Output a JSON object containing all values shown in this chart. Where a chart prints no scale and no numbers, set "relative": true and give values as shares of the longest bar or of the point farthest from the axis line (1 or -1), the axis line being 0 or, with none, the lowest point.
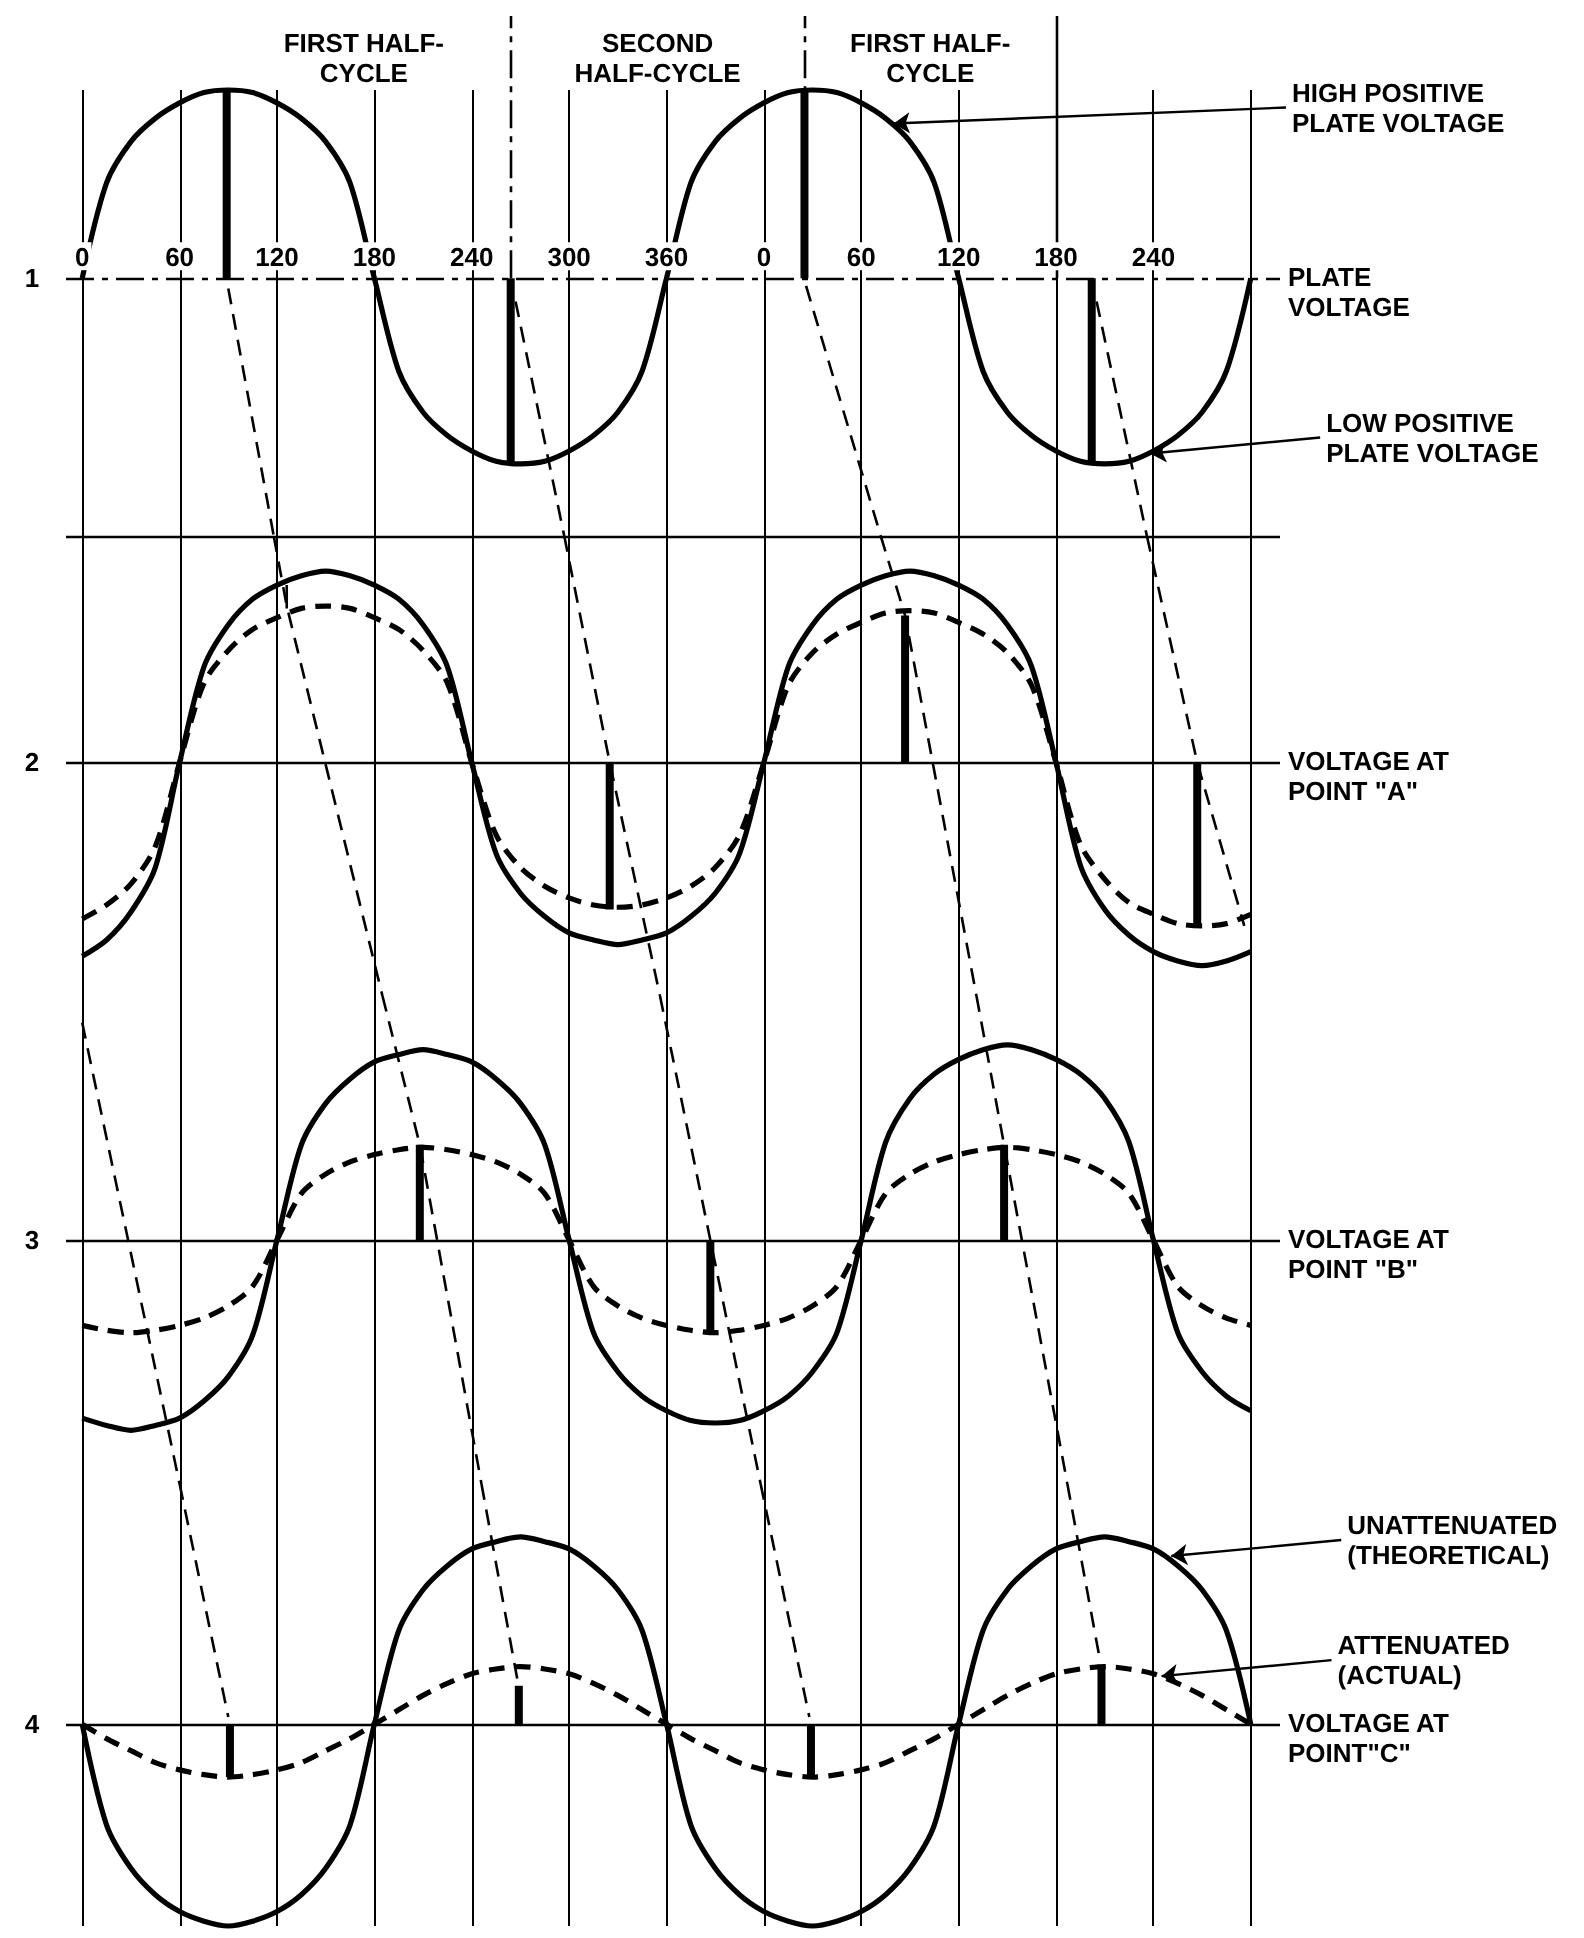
{
  "chart_data": [
    {
      "type": "line",
      "title": "1",
      "ylabel": "PLATE VOLTAGE",
      "relative": true,
      "xlim": [
        -10,
        738
      ],
      "xticks": [
        0,
        60,
        120,
        180,
        240,
        300,
        360,
        {
          "value": 420,
          "label": null
        },
        {
          "value": 480,
          "label": null
        },
        {
          "value": 540,
          "label": null
        },
        {
          "value": 600,
          "label": null
        },
        {
          "value": 660,
          "label": null
        },
        {
          "value": 720,
          "label": null
        }
      ],
      "x2lim": [
        -430,
        318
      ],
      "x2ticks": [
        0,
        60,
        120,
        180,
        240
      ],
      "tick_labels": "x",
      "grid": "x",
      "x": [
        0,
        15,
        30,
        45,
        60,
        75,
        90,
        105,
        120,
        135,
        150,
        165,
        180,
        195,
        210,
        225,
        240,
        255,
        270,
        285,
        300,
        315,
        330,
        345,
        360,
        375,
        390,
        405,
        420,
        435,
        450,
        465,
        480,
        495,
        510,
        525,
        540,
        555,
        570,
        585,
        600,
        615,
        630,
        645,
        660,
        675,
        690,
        705,
        720
      ],
      "series": [
        {
          "color": "#000000",
          "values": [
            0,
            0.37,
            0.53,
            0.62,
            0.68,
            0.72,
            0.73,
            0.72,
            0.68,
            0.62,
            0.53,
            0.37,
            0,
            -0.36,
            -0.52,
            -0.61,
            -0.67,
            -0.71,
            -0.72,
            -0.71,
            -0.67,
            -0.61,
            -0.52,
            -0.36,
            0,
            0.37,
            0.53,
            0.62,
            0.68,
            0.72,
            0.73,
            0.72,
            0.68,
            0.62,
            0.53,
            0.37,
            0,
            -0.36,
            -0.52,
            -0.61,
            -0.67,
            -0.71,
            -0.72,
            -0.71,
            -0.67,
            -0.61,
            -0.52,
            -0.36,
            0
          ]
        },
        {
          "color": "#000000",
          "line_style": "dashed",
          "x": [
            90,
            118
          ],
          "values": [
            -0.04,
            -1
          ]
        },
        {
          "color": "#000000",
          "line_style": "dashed",
          "x": [
            267,
            297
          ],
          "values": [
            -0.09,
            -1
          ]
        },
        {
          "color": "#000000",
          "line_style": "dashed",
          "x": [
            446,
            492
          ],
          "values": [
            -0.03,
            -1
          ]
        },
        {
          "color": "#000000",
          "line_style": "dashed",
          "x": [
            625,
            656
          ],
          "values": [
            -0.09,
            -1
          ]
        },
        {
          "type": "bar",
          "color": "#000000",
          "x": [
            89,
            264,
            445,
            622
          ],
          "values": [
            0.73,
            -0.72,
            0.73,
            -0.72
          ]
        }
      ],
      "ref_lines": [
        {
          "axis": "y",
          "value": 0,
          "line_style": "dashdot"
        },
        {
          "axis": "y",
          "value": -1
        },
        {
          "axis": "x",
          "value": 264,
          "line_style": "dashdot"
        },
        {
          "axis": "x",
          "value": 445,
          "line_style": "dashdot"
        },
        {
          "axis": "x",
          "value": 600
        }
      ],
      "annotations": [
        "FIRST HALF-CYCLE",
        "SECOND HALF-CYCLE",
        "FIRST HALF-CYCLE",
        {
          "text": "HIGH POSITIVE PLATE VOLTAGE",
          "x": 500,
          "y": 0.6
        },
        {
          "text": "LOW POSITIVE PLATE VOLTAGE",
          "x": 658,
          "y": -0.68
        }
      ]
    },
    {
      "type": "line",
      "title": "2",
      "ylabel": "VOLTAGE AT POINT \"A\"",
      "relative": true,
      "xlim": [
        -10,
        738
      ],
      "xticks": [
        0,
        60,
        120,
        180,
        240,
        300,
        360,
        420,
        480,
        540,
        600,
        660,
        720
      ],
      "tick_labels": false,
      "grid": "x",
      "x": [
        0,
        15,
        30,
        45,
        60,
        75,
        90,
        105,
        120,
        135,
        150,
        165,
        180,
        195,
        210,
        225,
        240,
        255,
        270,
        285,
        300,
        315,
        330,
        345,
        360,
        375,
        390,
        405,
        420,
        435,
        450,
        465,
        480,
        495,
        510,
        525,
        540,
        555,
        570,
        585,
        600,
        615,
        630,
        645,
        660,
        675,
        690,
        705,
        720
      ],
      "series": [
        {
          "color": "#000000",
          "values": [
            -0.83,
            -0.76,
            -0.64,
            -0.45,
            0,
            0.41,
            0.59,
            0.7,
            0.76,
            0.8,
            0.82,
            0.8,
            0.76,
            0.7,
            0.59,
            0.41,
            0,
            -0.39,
            -0.56,
            -0.66,
            -0.73,
            -0.76,
            -0.78,
            -0.76,
            -0.73,
            -0.66,
            -0.56,
            -0.39,
            0,
            0.41,
            0.59,
            0.7,
            0.76,
            0.8,
            0.82,
            0.8,
            0.76,
            0.7,
            0.59,
            0.41,
            0,
            -0.44,
            -0.63,
            -0.74,
            -0.81,
            -0.85,
            -0.87,
            -0.85,
            -0.81
          ]
        },
        {
          "color": "#000000",
          "line_style": "dashed",
          "values": [
            -0.67,
            -0.61,
            -0.52,
            -0.36,
            0,
            0.34,
            0.48,
            0.57,
            0.62,
            0.66,
            0.67,
            0.66,
            0.62,
            0.57,
            0.48,
            0.34,
            0,
            -0.31,
            -0.45,
            -0.53,
            -0.58,
            -0.61,
            -0.62,
            -0.61,
            -0.58,
            -0.53,
            -0.45,
            -0.31,
            0,
            0.33,
            0.47,
            0.55,
            0.6,
            0.64,
            0.65,
            0.64,
            0.6,
            0.55,
            0.47,
            0.33,
            0,
            -0.35,
            -0.5,
            -0.6,
            -0.65,
            -0.69,
            -0.7,
            -0.69,
            -0.65
          ]
        },
        {
          "color": "#000000",
          "line_style": "dashed",
          "x": [
            118,
            126,
            185
          ],
          "values": [
            0.97,
            0.67,
            -1
          ]
        },
        {
          "color": "#000000",
          "line_style": "dashed",
          "x": [
            297,
            325,
            356
          ],
          "values": [
            0.97,
            0,
            -1
          ]
        },
        {
          "color": "#000000",
          "line_style": "dashed",
          "x": [
            492,
            507,
            551
          ],
          "values": [
            0.97,
            0.63,
            -1
          ]
        },
        {
          "color": "#000000",
          "line_style": "dashed",
          "x": [
            656,
            687,
            716
          ],
          "values": [
            0.97,
            0,
            -0.7
          ]
        },
        {
          "color": "#000000",
          "x": [
            126,
            126
          ],
          "values": [
            0.66,
            0.76
          ]
        },
        {
          "type": "bar",
          "color": "#000000",
          "x": [
            325,
            507,
            687
          ],
          "values": [
            -0.63,
            0.63,
            -0.7
          ]
        }
      ],
      "ref_lines": [
        {
          "axis": "y",
          "value": 0
        }
      ]
    },
    {
      "type": "line",
      "title": "3",
      "ylabel": "VOLTAGE AT POINT \"B\"",
      "relative": true,
      "xlim": [
        -10,
        738
      ],
      "xticks": [
        0,
        60,
        120,
        180,
        240,
        300,
        360,
        420,
        480,
        540,
        600,
        660,
        720
      ],
      "tick_labels": false,
      "grid": "x",
      "x": [
        0,
        15,
        30,
        45,
        60,
        75,
        90,
        105,
        120,
        135,
        150,
        165,
        180,
        195,
        210,
        225,
        240,
        255,
        270,
        285,
        300,
        315,
        330,
        345,
        360,
        375,
        390,
        405,
        420,
        435,
        450,
        465,
        480,
        495,
        510,
        525,
        540,
        555,
        570,
        585,
        600,
        615,
        630,
        645,
        660,
        675,
        690,
        705,
        720
      ],
      "series": [
        {
          "color": "#000000",
          "values": [
            -0.73,
            -0.76,
            -0.78,
            -0.76,
            -0.73,
            -0.66,
            -0.56,
            -0.39,
            0,
            0.39,
            0.56,
            0.66,
            0.73,
            0.76,
            0.78,
            0.76,
            0.73,
            0.66,
            0.56,
            0.39,
            0,
            -0.38,
            -0.54,
            -0.64,
            -0.7,
            -0.74,
            -0.75,
            -0.74,
            -0.7,
            -0.64,
            -0.54,
            -0.38,
            0,
            0.4,
            0.58,
            0.68,
            0.74,
            0.78,
            0.8,
            0.78,
            0.74,
            0.68,
            0.58,
            0.4,
            0,
            -0.38,
            -0.54,
            -0.64,
            -0.7
          ]
        },
        {
          "color": "#000000",
          "line_style": "dashed",
          "values": [
            -0.35,
            -0.37,
            -0.38,
            -0.37,
            -0.35,
            -0.32,
            -0.27,
            -0.19,
            0,
            0.19,
            0.27,
            0.32,
            0.35,
            0.37,
            0.38,
            0.37,
            0.35,
            0.32,
            0.27,
            0.19,
            0,
            -0.19,
            -0.27,
            -0.32,
            -0.35,
            -0.37,
            -0.38,
            -0.37,
            -0.35,
            -0.32,
            -0.27,
            -0.19,
            0,
            0.19,
            0.27,
            0.32,
            0.35,
            0.37,
            0.38,
            0.37,
            0.35,
            0.32,
            0.27,
            0.19,
            0,
            -0.19,
            -0.27,
            -0.32,
            -0.35
          ]
        },
        {
          "color": "#000000",
          "line_style": "dashed",
          "x": [
            0,
            60
          ],
          "values": [
            0.89,
            -1
          ]
        },
        {
          "color": "#000000",
          "line_style": "dashed",
          "x": [
            185,
            208,
            246
          ],
          "values": [
            1,
            0.39,
            -1
          ]
        },
        {
          "color": "#000000",
          "line_style": "dashed",
          "x": [
            356,
            387,
            418
          ],
          "values": [
            1,
            0,
            -1
          ]
        },
        {
          "color": "#000000",
          "line_style": "dashed",
          "x": [
            551,
            568,
            607
          ],
          "values": [
            1,
            0.39,
            -1
          ]
        },
        {
          "type": "bar",
          "color": "#000000",
          "x": [
            208,
            387,
            568
          ],
          "values": [
            0.39,
            -0.37,
            0.39
          ]
        }
      ],
      "ref_lines": [
        {
          "axis": "y",
          "value": 0
        }
      ]
    },
    {
      "type": "line",
      "title": "4",
      "ylabel": "VOLTAGE AT POINT\"C\"",
      "relative": true,
      "xlim": [
        -10,
        738
      ],
      "xticks": [
        0,
        60,
        120,
        180,
        240,
        300,
        360,
        420,
        480,
        540,
        600,
        660,
        720
      ],
      "tick_labels": false,
      "grid": "x",
      "x": [
        0,
        15,
        30,
        45,
        60,
        75,
        90,
        105,
        120,
        135,
        150,
        165,
        180,
        195,
        210,
        225,
        240,
        255,
        270,
        285,
        300,
        315,
        330,
        345,
        360,
        375,
        390,
        405,
        420,
        435,
        450,
        465,
        480,
        495,
        510,
        525,
        540,
        555,
        570,
        585,
        600,
        615,
        630,
        645,
        660,
        675,
        690,
        705,
        720
      ],
      "series": [
        {
          "color": "#000000",
          "values": [
            0,
            -0.42,
            -0.6,
            -0.71,
            -0.78,
            -0.82,
            -0.84,
            -0.82,
            -0.78,
            -0.71,
            -0.6,
            -0.42,
            0,
            0.39,
            0.56,
            0.66,
            0.73,
            0.76,
            0.78,
            0.76,
            0.73,
            0.66,
            0.56,
            0.39,
            0,
            -0.42,
            -0.6,
            -0.71,
            -0.78,
            -0.82,
            -0.84,
            -0.82,
            -0.78,
            -0.71,
            -0.6,
            -0.42,
            0,
            0.39,
            0.56,
            0.66,
            0.73,
            0.76,
            0.78,
            0.76,
            0.73,
            0.66,
            0.56,
            0.39,
            0
          ]
        },
        {
          "color": "#000000",
          "line_style": "dashed",
          "values": [
            0,
            -0.06,
            -0.11,
            -0.16,
            -0.19,
            -0.21,
            -0.22,
            -0.21,
            -0.19,
            -0.16,
            -0.11,
            -0.06,
            0,
            0.06,
            0.12,
            0.17,
            0.21,
            0.23,
            0.24,
            0.23,
            0.21,
            0.17,
            0.12,
            0.06,
            0,
            -0.06,
            -0.11,
            -0.16,
            -0.19,
            -0.21,
            -0.22,
            -0.21,
            -0.19,
            -0.16,
            -0.11,
            -0.06,
            0,
            0.06,
            0.12,
            0.17,
            0.21,
            0.23,
            0.24,
            0.23,
            0.21,
            0.17,
            0.12,
            0.06,
            0
          ]
        },
        {
          "color": "#000000",
          "line_style": "dashed",
          "x": [
            60,
            90
          ],
          "values": [
            1,
            0.03
          ]
        },
        {
          "color": "#000000",
          "line_style": "dashed",
          "x": [
            246,
            268
          ],
          "values": [
            1,
            0.19
          ]
        },
        {
          "color": "#000000",
          "line_style": "dashed",
          "x": [
            418,
            448
          ],
          "values": [
            1,
            0.03
          ]
        },
        {
          "color": "#000000",
          "line_style": "dashed",
          "x": [
            607,
            627
          ],
          "values": [
            1,
            0.27
          ]
        },
        {
          "type": "bar",
          "color": "#000000",
          "x": [
            91,
            269,
            449,
            628
          ],
          "values": [
            -0.22,
            0.16,
            -0.22,
            0.24
          ]
        }
      ],
      "ref_lines": [
        {
          "axis": "y",
          "value": 0
        }
      ],
      "annotations": [
        {
          "text": "UNATTENUATED (THEORETICAL)",
          "x": 671,
          "y": 0.7
        },
        {
          "text": "ATTENUATED (ACTUAL)",
          "x": 665,
          "y": 0.2
        }
      ]
    }
  ]
}
